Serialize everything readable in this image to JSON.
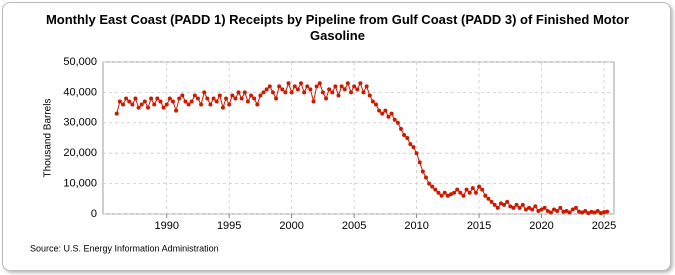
{
  "chart_data": {
    "type": "line",
    "title": "Monthly East Coast (PADD 1) Receipts by Pipeline from Gulf Coast (PADD 3) of Finished Motor Gasoline",
    "ylabel": "Thousand Barrels",
    "source": "Source: U.S. Energy Information Administration",
    "xlim": [
      1984.9,
      2025.8
    ],
    "xticks": [
      1990,
      1995,
      2000,
      2005,
      2010,
      2015,
      2020,
      2025
    ],
    "ylim": [
      0,
      50000
    ],
    "yticks": [
      {
        "value": 0,
        "label": "0"
      },
      {
        "value": 10000,
        "label": "10,000"
      },
      {
        "value": 20000,
        "label": "20,000"
      },
      {
        "value": 30000,
        "label": "30,000"
      },
      {
        "value": 40000,
        "label": "40,000"
      },
      {
        "value": 50000,
        "label": "50,000"
      }
    ],
    "grid": true,
    "markers": true,
    "series": [
      {
        "color": "#cc1a00",
        "x": [
          1986,
          1986.25,
          1986.5,
          1986.75,
          1987,
          1987.25,
          1987.5,
          1987.75,
          1988,
          1988.25,
          1988.5,
          1988.75,
          1989,
          1989.25,
          1989.5,
          1989.75,
          1990,
          1990.25,
          1990.5,
          1990.75,
          1991,
          1991.25,
          1991.5,
          1991.75,
          1992,
          1992.25,
          1992.5,
          1992.75,
          1993,
          1993.25,
          1993.5,
          1993.75,
          1994,
          1994.25,
          1994.5,
          1994.75,
          1995,
          1995.25,
          1995.5,
          1995.75,
          1996,
          1996.25,
          1996.5,
          1996.75,
          1997,
          1997.25,
          1997.5,
          1997.75,
          1998,
          1998.25,
          1998.5,
          1998.75,
          1999,
          1999.25,
          1999.5,
          1999.75,
          2000,
          2000.25,
          2000.5,
          2000.75,
          2001,
          2001.25,
          2001.5,
          2001.75,
          2002,
          2002.25,
          2002.5,
          2002.75,
          2003,
          2003.25,
          2003.5,
          2003.75,
          2004,
          2004.25,
          2004.5,
          2004.75,
          2005,
          2005.25,
          2005.5,
          2005.75,
          2006,
          2006.25,
          2006.5,
          2006.75,
          2007,
          2007.25,
          2007.5,
          2007.75,
          2008,
          2008.25,
          2008.5,
          2008.75,
          2009,
          2009.25,
          2009.5,
          2009.75,
          2010,
          2010.25,
          2010.5,
          2010.75,
          2011,
          2011.25,
          2011.5,
          2011.75,
          2012,
          2012.25,
          2012.5,
          2012.75,
          2013,
          2013.25,
          2013.5,
          2013.75,
          2014,
          2014.25,
          2014.5,
          2014.75,
          2015,
          2015.25,
          2015.5,
          2015.75,
          2016,
          2016.25,
          2016.5,
          2016.75,
          2017,
          2017.25,
          2017.5,
          2017.75,
          2018,
          2018.25,
          2018.5,
          2018.75,
          2019,
          2019.25,
          2019.5,
          2019.75,
          2020,
          2020.25,
          2020.5,
          2020.75,
          2021,
          2021.25,
          2021.5,
          2021.75,
          2022,
          2022.25,
          2022.5,
          2022.75,
          2023,
          2023.25,
          2023.5,
          2023.75,
          2024,
          2024.25,
          2024.5,
          2024.75,
          2025,
          2025.25
        ],
        "values": [
          33000,
          37000,
          36000,
          38000,
          37000,
          36000,
          38000,
          35000,
          36000,
          37000,
          35000,
          38000,
          36000,
          38000,
          37000,
          35000,
          36000,
          38000,
          37000,
          34000,
          38000,
          39000,
          37000,
          36000,
          37000,
          39000,
          38000,
          36000,
          40000,
          38000,
          36000,
          38000,
          37000,
          39000,
          35000,
          38000,
          36000,
          39000,
          38000,
          40000,
          38000,
          40000,
          37000,
          39000,
          38000,
          36000,
          39000,
          40000,
          41000,
          42000,
          40000,
          38000,
          42000,
          41000,
          40000,
          43000,
          40000,
          42000,
          41000,
          43000,
          40000,
          42000,
          41000,
          37000,
          42000,
          43000,
          40000,
          38000,
          41000,
          40000,
          42000,
          39000,
          42000,
          41000,
          43000,
          40000,
          42000,
          41000,
          43000,
          40000,
          42000,
          39000,
          37000,
          36000,
          34000,
          33000,
          34000,
          32000,
          33000,
          31000,
          30000,
          28000,
          26000,
          25000,
          23000,
          22000,
          20000,
          17000,
          14000,
          12000,
          10000,
          9000,
          8000,
          7000,
          6000,
          7000,
          6000,
          6500,
          7000,
          8000,
          7000,
          6000,
          8000,
          7000,
          8500,
          7000,
          9000,
          8000,
          6000,
          5000,
          4000,
          3000,
          2000,
          3500,
          3000,
          4000,
          2500,
          2000,
          3000,
          2000,
          3000,
          1500,
          2000,
          1500,
          2500,
          1000,
          1500,
          2000,
          1000,
          500,
          1500,
          1000,
          2000,
          800,
          1000,
          500,
          1500,
          2000,
          800,
          500,
          1000,
          300,
          700,
          500,
          1000,
          300,
          600,
          800
        ]
      }
    ]
  }
}
